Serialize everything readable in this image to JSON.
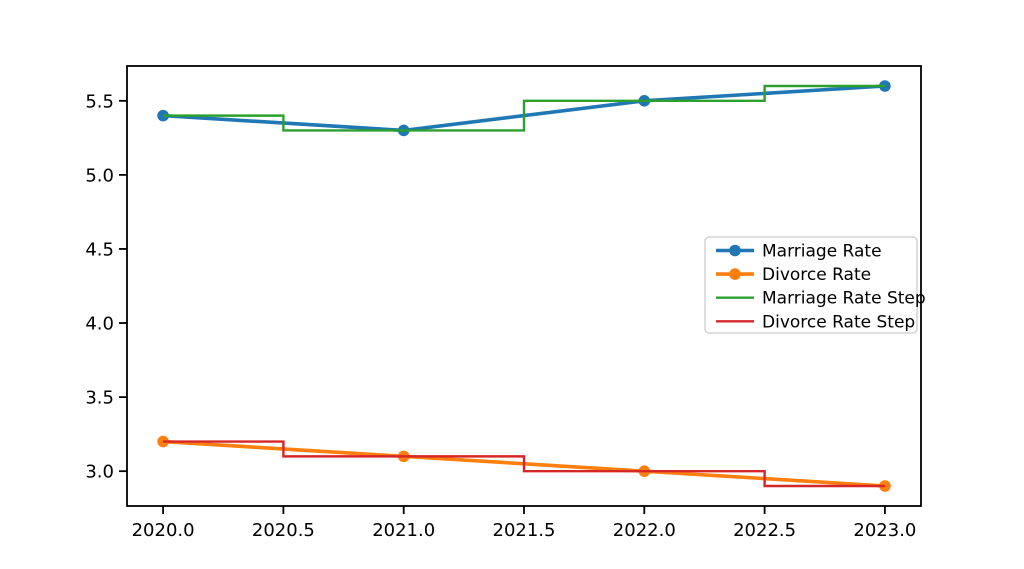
{
  "figure": {
    "background_color": "#ffffff",
    "title": ""
  },
  "chart_data": {
    "type": "line",
    "title": "",
    "xlabel": "",
    "ylabel": "",
    "grid": false,
    "x": [
      2020,
      2021,
      2022,
      2023
    ],
    "series": [
      {
        "name": "Marriage Rate",
        "values": [
          5.4,
          5.3,
          5.5,
          5.6
        ],
        "color": "#1f77b4",
        "marker": "o",
        "step": null,
        "linewidth": 3.6
      },
      {
        "name": "Divorce Rate",
        "values": [
          3.2,
          3.1,
          3.0,
          2.9
        ],
        "color": "#ff7f0e",
        "marker": "o",
        "step": null,
        "linewidth": 3.6
      },
      {
        "name": "Marriage Rate Step",
        "values": [
          5.4,
          5.3,
          5.5,
          5.6
        ],
        "color": "#2ca02c",
        "marker": null,
        "step": "mid",
        "linewidth": 2.4
      },
      {
        "name": "Divorce Rate Step",
        "values": [
          3.2,
          3.1,
          3.0,
          2.9
        ],
        "color": "#d62728",
        "marker": null,
        "step": "mid",
        "linewidth": 2.4
      }
    ],
    "xlim": [
      2019.85,
      2023.15
    ],
    "ylim": [
      2.765,
      5.735
    ],
    "xticks": [
      2020.0,
      2020.5,
      2021.0,
      2021.5,
      2022.0,
      2022.5,
      2023.0
    ],
    "xtick_labels": [
      "2020.0",
      "2020.5",
      "2021.0",
      "2021.5",
      "2022.0",
      "2022.5",
      "2023.0"
    ],
    "yticks": [
      3.0,
      3.5,
      4.0,
      4.5,
      5.0,
      5.5
    ],
    "ytick_labels": [
      "3.0",
      "3.5",
      "4.0",
      "4.5",
      "5.0",
      "5.5"
    ],
    "legend": {
      "position": "center right",
      "border_color": "#cccccc",
      "background_color": "#ffffff",
      "items": [
        "Marriage Rate",
        "Divorce Rate",
        "Marriage Rate Step",
        "Divorce Rate Step"
      ]
    },
    "axis_color": "#000000",
    "tick_label_color": "#000000"
  }
}
